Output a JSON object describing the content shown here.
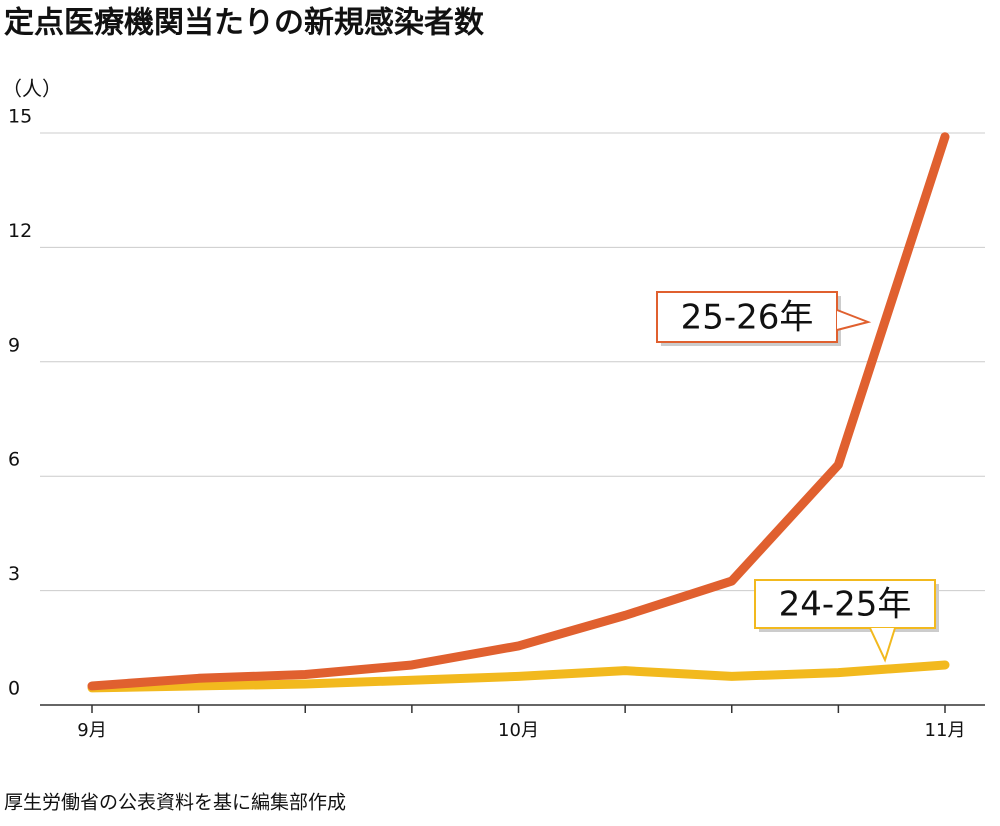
{
  "chart_data": {
    "type": "line",
    "title": "定点医療機関当たりの新規感染者数",
    "y_unit": "（人）",
    "source": "厚生労働省の公表資料を基に編集部作成",
    "categories": [
      "9月",
      null,
      null,
      null,
      "10月",
      null,
      null,
      null,
      "11月"
    ],
    "series": [
      {
        "name": "25-26年",
        "color": "#e0602f",
        "values": [
          0.5,
          0.7,
          0.8,
          1.05,
          1.55,
          2.35,
          3.25,
          6.3,
          14.9
        ]
      },
      {
        "name": "24-25年",
        "color": "#f2b91e",
        "values": [
          0.45,
          0.5,
          0.55,
          0.65,
          0.75,
          0.9,
          0.75,
          0.85,
          1.05
        ]
      }
    ],
    "ylim": [
      0,
      15
    ],
    "yticks": [
      0,
      3,
      6,
      9,
      12,
      15
    ],
    "grid": true
  }
}
